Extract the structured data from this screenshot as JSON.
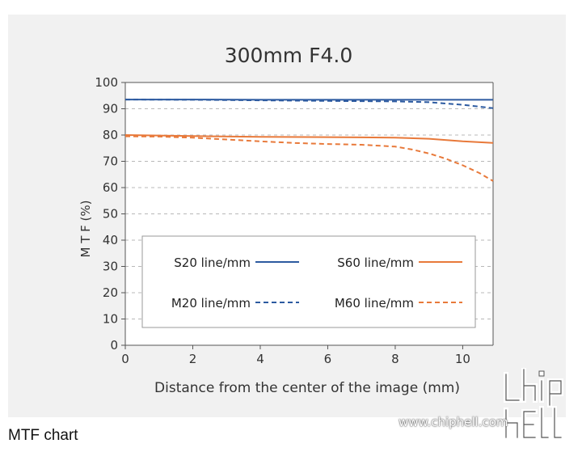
{
  "caption": "MTF chart",
  "watermark": {
    "url_text": "www.chiphell.com"
  },
  "colors": {
    "blue": "#2c5aa0",
    "orange": "#e8793a",
    "panel": "#f1f1f1"
  },
  "chart_data": {
    "type": "line",
    "title": "300mm F4.0",
    "xlabel": "Distance from the center of the image (mm)",
    "ylabel": "M T F (%)",
    "xlim": [
      0,
      10.9
    ],
    "ylim": [
      0,
      100
    ],
    "xticks": [
      0,
      2,
      4,
      6,
      8,
      10
    ],
    "yticks": [
      0,
      10,
      20,
      30,
      40,
      50,
      60,
      70,
      80,
      90,
      100
    ],
    "grid": "horizontal dashed",
    "legend_position": "inside-bottom",
    "series": [
      {
        "name": "S20 line/mm",
        "style": "solid",
        "color": "#2c5aa0",
        "x": [
          0,
          2,
          4,
          6,
          8,
          10,
          10.9
        ],
        "y": [
          93.5,
          93.5,
          93.4,
          93.4,
          93.4,
          93.4,
          93.4
        ]
      },
      {
        "name": "S60 line/mm",
        "style": "solid",
        "color": "#e8793a",
        "x": [
          0,
          2,
          4,
          6,
          7,
          8,
          9,
          10,
          10.9
        ],
        "y": [
          80,
          79.6,
          79.3,
          79.2,
          79.1,
          79,
          78.6,
          77.6,
          77
        ]
      },
      {
        "name": "M20 line/mm",
        "style": "dashed",
        "color": "#2c5aa0",
        "x": [
          0,
          2,
          4,
          6,
          8,
          9,
          10,
          10.9
        ],
        "y": [
          93.5,
          93.4,
          93.2,
          93,
          92.8,
          92.5,
          91.5,
          90.2
        ]
      },
      {
        "name": "M60 line/mm",
        "style": "dashed",
        "color": "#e8793a",
        "x": [
          0,
          1,
          2,
          3,
          4,
          5,
          6,
          7,
          8,
          8.5,
          9,
          9.5,
          10,
          10.5,
          10.9
        ],
        "y": [
          79.5,
          79.4,
          79,
          78.3,
          77.6,
          77,
          76.6,
          76.3,
          75.6,
          74.5,
          73,
          71,
          68.5,
          65.5,
          62.5
        ]
      }
    ]
  }
}
